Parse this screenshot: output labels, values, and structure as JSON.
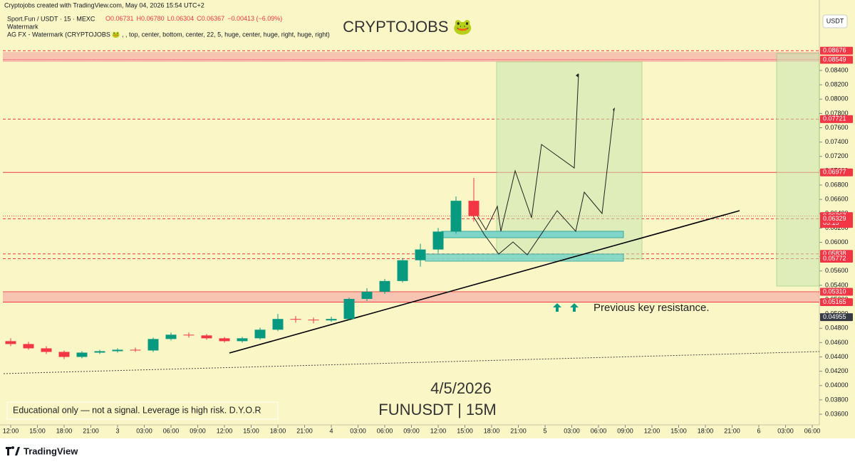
{
  "header": {
    "credit": "Cryptojobs created with TradingView.com, May 04, 2026 15:54 UTC+2",
    "symbol": "Sport.Fun / USDT · 15 · MEXC",
    "ohlc": [
      "O0.06731",
      "H0.06780",
      "L0.06304",
      "C0.06367",
      "−0.00413 (−6.09%)"
    ],
    "indicator1": "Watermark",
    "indicator2": "AG FX - Watermark (CRYPTOJOBS 🐸 , , top, center, bottom, center, 22, 5, huge, center, huge, right, huge, right)",
    "currency": "USDT"
  },
  "chart_data": {
    "type": "candlestick",
    "title": "CRYPTOJOBS 🐸",
    "annotation": "Previous key resistance.",
    "date_text": "4/5/2026",
    "pair_text": "FUNUSDT | 15M",
    "disclaimer": "Educational only — not a signal. Leverage is high risk. D.Y.O.R",
    "up_color": "#089981",
    "down_color": "#f23645",
    "x": [
      0,
      2,
      4,
      6,
      8,
      10,
      12,
      14,
      16,
      18,
      20,
      22,
      24,
      26,
      28,
      30,
      32,
      34,
      36,
      38,
      40,
      42,
      44,
      46,
      48,
      50,
      52
    ],
    "open": [
      0.0462,
      0.0458,
      0.0452,
      0.0447,
      0.044,
      0.0446,
      0.0448,
      0.045,
      0.0449,
      0.0465,
      0.0471,
      0.047,
      0.0466,
      0.0462,
      0.0466,
      0.0478,
      0.0493,
      0.0492,
      0.0491,
      0.0493,
      0.0521,
      0.0531,
      0.0546,
      0.0575,
      0.059,
      0.0615,
      0.0658
    ],
    "high": [
      0.0466,
      0.0461,
      0.0455,
      0.0449,
      0.0448,
      0.045,
      0.0452,
      0.0453,
      0.0467,
      0.0474,
      0.0474,
      0.0472,
      0.0468,
      0.0468,
      0.0481,
      0.05,
      0.0497,
      0.0495,
      0.0496,
      0.0523,
      0.0536,
      0.0549,
      0.0578,
      0.0598,
      0.062,
      0.0664,
      0.069
    ],
    "low": [
      0.0455,
      0.045,
      0.0444,
      0.0437,
      0.0438,
      0.0444,
      0.0446,
      0.0447,
      0.0447,
      0.0463,
      0.0467,
      0.0464,
      0.046,
      0.046,
      0.0464,
      0.0476,
      0.0488,
      0.0487,
      0.0489,
      0.0491,
      0.0518,
      0.0528,
      0.0544,
      0.0566,
      0.0585,
      0.0612,
      0.0629
    ],
    "close": [
      0.0458,
      0.0452,
      0.0447,
      0.044,
      0.0446,
      0.0448,
      0.045,
      0.0449,
      0.0465,
      0.0471,
      0.047,
      0.0466,
      0.0462,
      0.0466,
      0.0478,
      0.0493,
      0.0492,
      0.0491,
      0.0493,
      0.0521,
      0.0531,
      0.0546,
      0.0575,
      0.059,
      0.0615,
      0.0658,
      0.06367
    ],
    "xlim": [
      -1.2,
      90.8
    ],
    "ylim": [
      0.03451,
      0.09384
    ],
    "xticks": [
      {
        "value": 0,
        "label": "12:00"
      },
      {
        "value": 3,
        "label": "15:00"
      },
      {
        "value": 6,
        "label": "18:00"
      },
      {
        "value": 9,
        "label": "21:00"
      },
      {
        "value": 12,
        "label": "3"
      },
      {
        "value": 15,
        "label": "03:00"
      },
      {
        "value": 18,
        "label": "06:00"
      },
      {
        "value": 21,
        "label": "09:00"
      },
      {
        "value": 24,
        "label": "12:00"
      },
      {
        "value": 27,
        "label": "15:00"
      },
      {
        "value": 30,
        "label": "18:00"
      },
      {
        "value": 33,
        "label": "21:00"
      },
      {
        "value": 36,
        "label": "4"
      },
      {
        "value": 39,
        "label": "03:00"
      },
      {
        "value": 42,
        "label": "06:00"
      },
      {
        "value": 45,
        "label": "09:00"
      },
      {
        "value": 48,
        "label": "12:00"
      },
      {
        "value": 51,
        "label": "15:00"
      },
      {
        "value": 54,
        "label": "18:00"
      },
      {
        "value": 57,
        "label": "21:00"
      },
      {
        "value": 60,
        "label": "5"
      },
      {
        "value": 63,
        "label": "03:00"
      },
      {
        "value": 66,
        "label": "06:00"
      },
      {
        "value": 69,
        "label": "09:00"
      },
      {
        "value": 72,
        "label": "12:00"
      },
      {
        "value": 75,
        "label": "15:00"
      },
      {
        "value": 78,
        "label": "18:00"
      },
      {
        "value": 81,
        "label": "21:00"
      },
      {
        "value": 84,
        "label": "6"
      },
      {
        "value": 87,
        "label": "03:00"
      },
      {
        "value": 90,
        "label": "06:00"
      }
    ],
    "yticks": [
      {
        "value": 0.036,
        "label": "0.03600"
      },
      {
        "value": 0.038,
        "label": "0.03800"
      },
      {
        "value": 0.04,
        "label": "0.04000"
      },
      {
        "value": 0.042,
        "label": "0.04200"
      },
      {
        "value": 0.044,
        "label": "0.04400"
      },
      {
        "value": 0.046,
        "label": "0.04600"
      },
      {
        "value": 0.048,
        "label": "0.04800"
      },
      {
        "value": 0.05,
        "label": "0.05000"
      },
      {
        "value": 0.052,
        "label": "0.05200"
      },
      {
        "value": 0.054,
        "label": "0.05400"
      },
      {
        "value": 0.056,
        "label": "0.05600"
      },
      {
        "value": 0.058,
        "label": "0.05800"
      },
      {
        "value": 0.06,
        "label": "0.06000"
      },
      {
        "value": 0.062,
        "label": "0.06200"
      },
      {
        "value": 0.064,
        "label": "0.06400"
      },
      {
        "value": 0.066,
        "label": "0.06600"
      },
      {
        "value": 0.068,
        "label": "0.06800"
      },
      {
        "value": 0.07,
        "label": "0.07000"
      },
      {
        "value": 0.072,
        "label": "0.07200"
      },
      {
        "value": 0.074,
        "label": "0.07400"
      },
      {
        "value": 0.076,
        "label": "0.07600"
      },
      {
        "value": 0.078,
        "label": "0.07800"
      },
      {
        "value": 0.08,
        "label": "0.08000"
      },
      {
        "value": 0.082,
        "label": "0.08200"
      },
      {
        "value": 0.084,
        "label": "0.08400"
      }
    ],
    "levels": [
      {
        "value": 0.08676,
        "label": "0.08676",
        "color": "#f23645",
        "style": "dashed"
      },
      {
        "value": 0.0855,
        "label": "0.08550",
        "color": "#f23645",
        "style": "solid"
      },
      {
        "value": 0.08549,
        "label": "0.08549",
        "color": "#f23645",
        "style": "dashed"
      },
      {
        "value": 0.07721,
        "label": "0.07721",
        "color": "#f23645",
        "style": "dashed"
      },
      {
        "value": 0.06977,
        "label": "0.06977",
        "color": "#f23645",
        "style": "solid"
      },
      {
        "value": 0.06367,
        "label": "0.06367",
        "sublabel": "05:15",
        "color": "#f23645",
        "style": "dotted"
      },
      {
        "value": 0.06329,
        "label": "0.06329",
        "color": "#f23645",
        "style": "dashed"
      },
      {
        "value": 0.05838,
        "label": "0.05838",
        "color": "#f23645",
        "style": "dashed"
      },
      {
        "value": 0.05772,
        "label": "0.05772",
        "color": "#f23645",
        "style": "dashed"
      },
      {
        "value": 0.0531,
        "label": "0.05310",
        "color": "#f23645",
        "style": "solid"
      },
      {
        "value": 0.05165,
        "label": "0.05165",
        "color": "#f23645",
        "style": "solid"
      },
      {
        "value": 0.04955,
        "label": "0.04955",
        "color": "#363a45",
        "style": "none"
      }
    ]
  },
  "footer": {
    "brand": "TradingView"
  }
}
